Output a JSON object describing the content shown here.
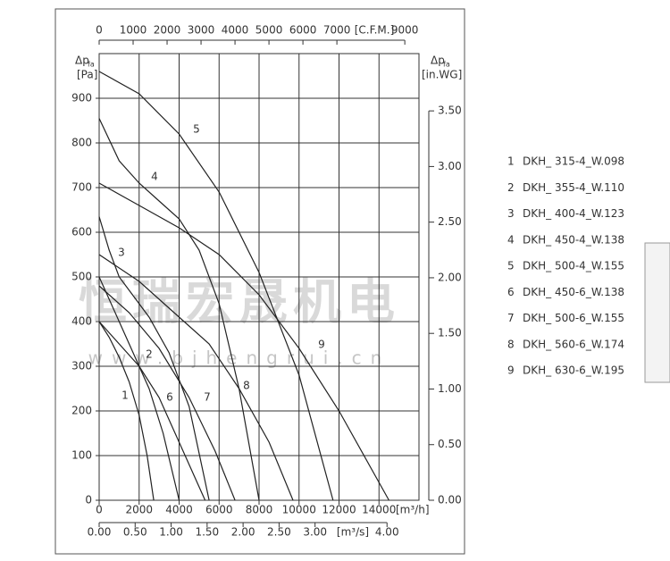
{
  "chart_data": {
    "type": "line",
    "y_label": "Δp",
    "y_label_sub": "fa",
    "y_unit": "[Pa]",
    "y2_label": "Δp",
    "y2_label_sub": "fa",
    "y2_unit": "[in.WG]",
    "x_unit": "[m³/h]",
    "x2_unit": "[C.F.M.]",
    "x3_unit": "[m³/s]",
    "xlim": [
      0,
      16000
    ],
    "xticks": [
      0,
      2000,
      4000,
      6000,
      8000,
      10000,
      12000,
      14000
    ],
    "x2lim": [
      0,
      9417
    ],
    "x2ticks": [
      0,
      1000,
      2000,
      3000,
      4000,
      5000,
      6000,
      7000,
      9000
    ],
    "x3lim": [
      0,
      4.444
    ],
    "x3ticks": [
      {
        "value": 0,
        "label": "0.00"
      },
      {
        "value": 0.5,
        "label": "0.50"
      },
      {
        "value": 1,
        "label": "1.00"
      },
      {
        "value": 1.5,
        "label": "1.50"
      },
      {
        "value": 2,
        "label": "2.00"
      },
      {
        "value": 2.5,
        "label": "2.50"
      },
      {
        "value": 3,
        "label": "3.00"
      },
      {
        "value": 4,
        "label": "4.00"
      }
    ],
    "ylim": [
      0,
      1000
    ],
    "yticks": [
      0,
      100,
      200,
      300,
      400,
      500,
      600,
      700,
      800,
      900
    ],
    "y2lim": [
      0,
      4.015
    ],
    "y2ticks": [
      {
        "value": 0,
        "label": "0.00"
      },
      {
        "value": 0.5,
        "label": "0.50"
      },
      {
        "value": 1,
        "label": "1.00"
      },
      {
        "value": 1.5,
        "label": "1.50"
      },
      {
        "value": 2,
        "label": "2.00"
      },
      {
        "value": 2.5,
        "label": "2.50"
      },
      {
        "value": 3,
        "label": "3.00"
      },
      {
        "value": 3.5,
        "label": "3.50"
      }
    ],
    "grid": true,
    "color": "#222222",
    "series": [
      {
        "label": "1",
        "name": "DKH_ 315-4_W.098",
        "x": [
          0,
          500,
          1000,
          1500,
          2000,
          2400,
          2730
        ],
        "values": [
          400,
          365,
          320,
          265,
          190,
          100,
          0
        ]
      },
      {
        "label": "2",
        "name": "DKH_ 355-4_W.110",
        "x": [
          0,
          500,
          1000,
          1500,
          2500,
          3200,
          4000
        ],
        "values": [
          500,
          450,
          400,
          350,
          250,
          150,
          0
        ]
      },
      {
        "label": "3",
        "name": "DKH_ 400-4_W.123",
        "x": [
          0,
          500,
          1000,
          1500,
          2500,
          3500,
          4500,
          5500
        ],
        "values": [
          635,
          560,
          500,
          470,
          410,
          330,
          210,
          0
        ]
      },
      {
        "label": "4",
        "name": "DKH_ 450-4_W.138",
        "x": [
          0,
          1000,
          2000,
          3000,
          4000,
          5000,
          6000,
          7000,
          8000
        ],
        "values": [
          855,
          760,
          710,
          670,
          630,
          560,
          440,
          250,
          0
        ]
      },
      {
        "label": "5",
        "name": "DKH_ 500-4_W.155",
        "x": [
          0,
          2000,
          4000,
          6000,
          8000,
          10000,
          11700
        ],
        "values": [
          960,
          910,
          820,
          690,
          510,
          280,
          0
        ]
      },
      {
        "label": "6",
        "name": "DKH_ 450-6_W.138",
        "x": [
          0,
          1000,
          2000,
          3000,
          4000,
          5300
        ],
        "values": [
          400,
          350,
          300,
          230,
          130,
          0
        ]
      },
      {
        "label": "7",
        "name": "DKH_ 500-6_W.155",
        "x": [
          0,
          1500,
          3000,
          4500,
          5800,
          6800
        ],
        "values": [
          480,
          420,
          340,
          230,
          110,
          0
        ]
      },
      {
        "label": "8",
        "name": "DKH_ 560-6_W.174",
        "x": [
          0,
          2000,
          4000,
          5500,
          7000,
          8500,
          9700
        ],
        "values": [
          550,
          490,
          410,
          350,
          250,
          130,
          0
        ]
      },
      {
        "label": "9",
        "name": "DKH_ 630-6_W.195",
        "x": [
          0,
          2000,
          4000,
          6000,
          8000,
          10000,
          12000,
          14500
        ],
        "values": [
          710,
          660,
          610,
          550,
          460,
          340,
          200,
          0
        ]
      }
    ]
  },
  "watermark": {
    "title": "恒瑞宏晟机电",
    "url": "www.bjhengrui.cn"
  }
}
